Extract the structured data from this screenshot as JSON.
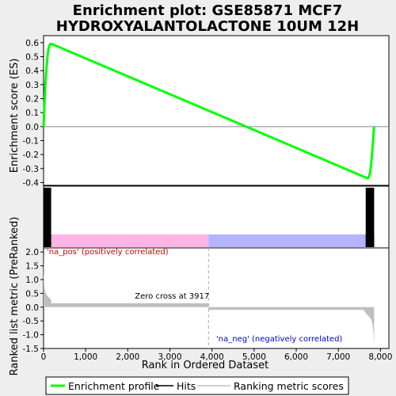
{
  "title": "Enrichment plot: GSE85871 MCF7\nHYDROXYALANTOLACTONE 10UM 12H",
  "colors": {
    "background": "#eeeeee",
    "plot_bg": "#ffffff",
    "es_line": "#00ff00",
    "hits": "#000000",
    "metric_fill": "#bebebe",
    "pos_band": "#ffb4e6",
    "neg_band": "#b4b4ff",
    "pos_label": "#cc0000",
    "neg_label": "#0000cc",
    "zero_line": "#aaaaaa"
  },
  "chart_data": [
    {
      "type": "line",
      "panel": "enrichment-score",
      "ylabel": "Enrichment score (ES)",
      "ylim": [
        -0.42,
        0.65
      ],
      "yticks": [
        -0.4,
        -0.3,
        -0.2,
        -0.1,
        0.0,
        0.1,
        0.2,
        0.3,
        0.4,
        0.5,
        0.6
      ],
      "ytick_labels": [
        "-0.4",
        "-0.3",
        "-0.2",
        "-0.1",
        "0.0",
        "0.1",
        "0.2",
        "0.3",
        "0.4",
        "0.5",
        "0.6"
      ],
      "xlim": [
        0,
        8200
      ],
      "series": [
        {
          "name": "Enrichment profile",
          "x": [
            0,
            20,
            40,
            60,
            80,
            100,
            120,
            140,
            160,
            200,
            7700,
            7740,
            7760,
            7780,
            7800,
            7820,
            7835,
            7850
          ],
          "y": [
            0.0,
            0.15,
            0.28,
            0.38,
            0.46,
            0.52,
            0.56,
            0.58,
            0.59,
            0.59,
            -0.37,
            -0.35,
            -0.32,
            -0.26,
            -0.2,
            -0.12,
            -0.05,
            0.0
          ]
        }
      ]
    },
    {
      "type": "hits",
      "panel": "hits",
      "xlim": [
        0,
        8200
      ],
      "hit_ranges": [
        [
          0,
          180
        ],
        [
          7650,
          7850
        ]
      ],
      "bands": [
        {
          "from": 0,
          "to": 3917,
          "tone": "positive"
        },
        {
          "from": 3917,
          "to": 7850,
          "tone": "negative"
        }
      ],
      "band_dark_ranges": [
        [
          0,
          180,
          "#b40000"
        ],
        [
          7650,
          7850,
          "#0000b4"
        ]
      ]
    },
    {
      "type": "area",
      "panel": "ranked-metric",
      "ylabel": "Ranked list metric (PreRanked)",
      "xlabel": "Rank in Ordered Dataset",
      "xlim": [
        0,
        8200
      ],
      "ylim": [
        -1.5,
        2.15
      ],
      "xticks": [
        0,
        1000,
        2000,
        3000,
        4000,
        5000,
        6000,
        7000,
        8000
      ],
      "xtick_labels": [
        "0",
        "1,000",
        "2,000",
        "3,000",
        "4,000",
        "5,000",
        "6,000",
        "7,000",
        "8,000"
      ],
      "yticks": [
        -1.5,
        -1.0,
        -0.5,
        0.0,
        0.5,
        1.0,
        1.5,
        2.0
      ],
      "ytick_labels": [
        "-1.5",
        "-1.0",
        "-0.5",
        "0.0",
        "0.5",
        "1.0",
        "1.5",
        "2.0"
      ],
      "x": [
        0,
        5,
        15,
        40,
        80,
        120,
        160,
        180,
        181,
        3916,
        3917,
        3918,
        7600,
        7650,
        7700,
        7750,
        7780,
        7800,
        7820,
        7835,
        7850
      ],
      "y": [
        2.1,
        1.3,
        0.8,
        0.55,
        0.42,
        0.36,
        0.3,
        0.26,
        0.14,
        0.14,
        0.0,
        -0.1,
        -0.1,
        -0.22,
        -0.3,
        -0.38,
        -0.45,
        -0.55,
        -0.7,
        -0.95,
        -1.35
      ],
      "zero_cross": 3917,
      "annotations": {
        "zero_cross": "Zero cross at 3917",
        "positive": "'na_pos' (positively correlated)",
        "negative": "'na_neg' (negatively correlated)"
      }
    }
  ],
  "legend": {
    "items": [
      {
        "label": "Enrichment profile",
        "kind": "es"
      },
      {
        "label": "Hits",
        "kind": "hits"
      },
      {
        "label": "Ranking metric scores",
        "kind": "metric"
      }
    ]
  }
}
